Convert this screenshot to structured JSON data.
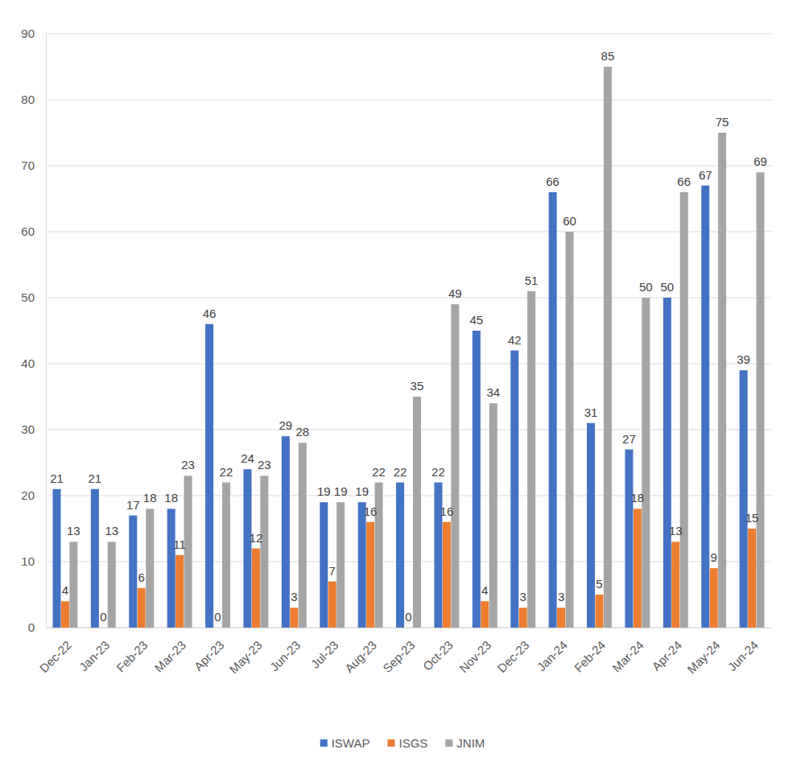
{
  "chart_data": {
    "type": "bar",
    "categories": [
      "Dec-22",
      "Jan-23",
      "Feb-23",
      "Mar-23",
      "Apr-23",
      "May-23",
      "Jun-23",
      "Jul-23",
      "Aug-23",
      "Sep-23",
      "Oct-23",
      "Nov-23",
      "Dec-23",
      "Jan-24",
      "Feb-24",
      "Mar-24",
      "Apr-24",
      "May-24",
      "Jun-24"
    ],
    "series": [
      {
        "name": "ISWAP",
        "color": "#4472c4",
        "values": [
          21,
          21,
          17,
          18,
          46,
          24,
          29,
          19,
          19,
          22,
          22,
          45,
          42,
          66,
          31,
          27,
          50,
          67,
          39
        ]
      },
      {
        "name": "ISGS",
        "color": "#ed7d31",
        "values": [
          4,
          0,
          6,
          11,
          0,
          12,
          3,
          7,
          16,
          0,
          16,
          4,
          3,
          3,
          5,
          18,
          13,
          9,
          15
        ]
      },
      {
        "name": "JNIM",
        "color": "#a5a5a5",
        "values": [
          13,
          13,
          18,
          23,
          22,
          23,
          28,
          19,
          22,
          35,
          49,
          34,
          51,
          60,
          85,
          50,
          66,
          75,
          69
        ]
      }
    ],
    "ylim": [
      0,
      90
    ],
    "yticks": [
      0,
      10,
      20,
      30,
      40,
      50,
      60,
      70,
      80,
      90
    ],
    "grid": true,
    "legend": "bottom",
    "data_labels": true
  }
}
